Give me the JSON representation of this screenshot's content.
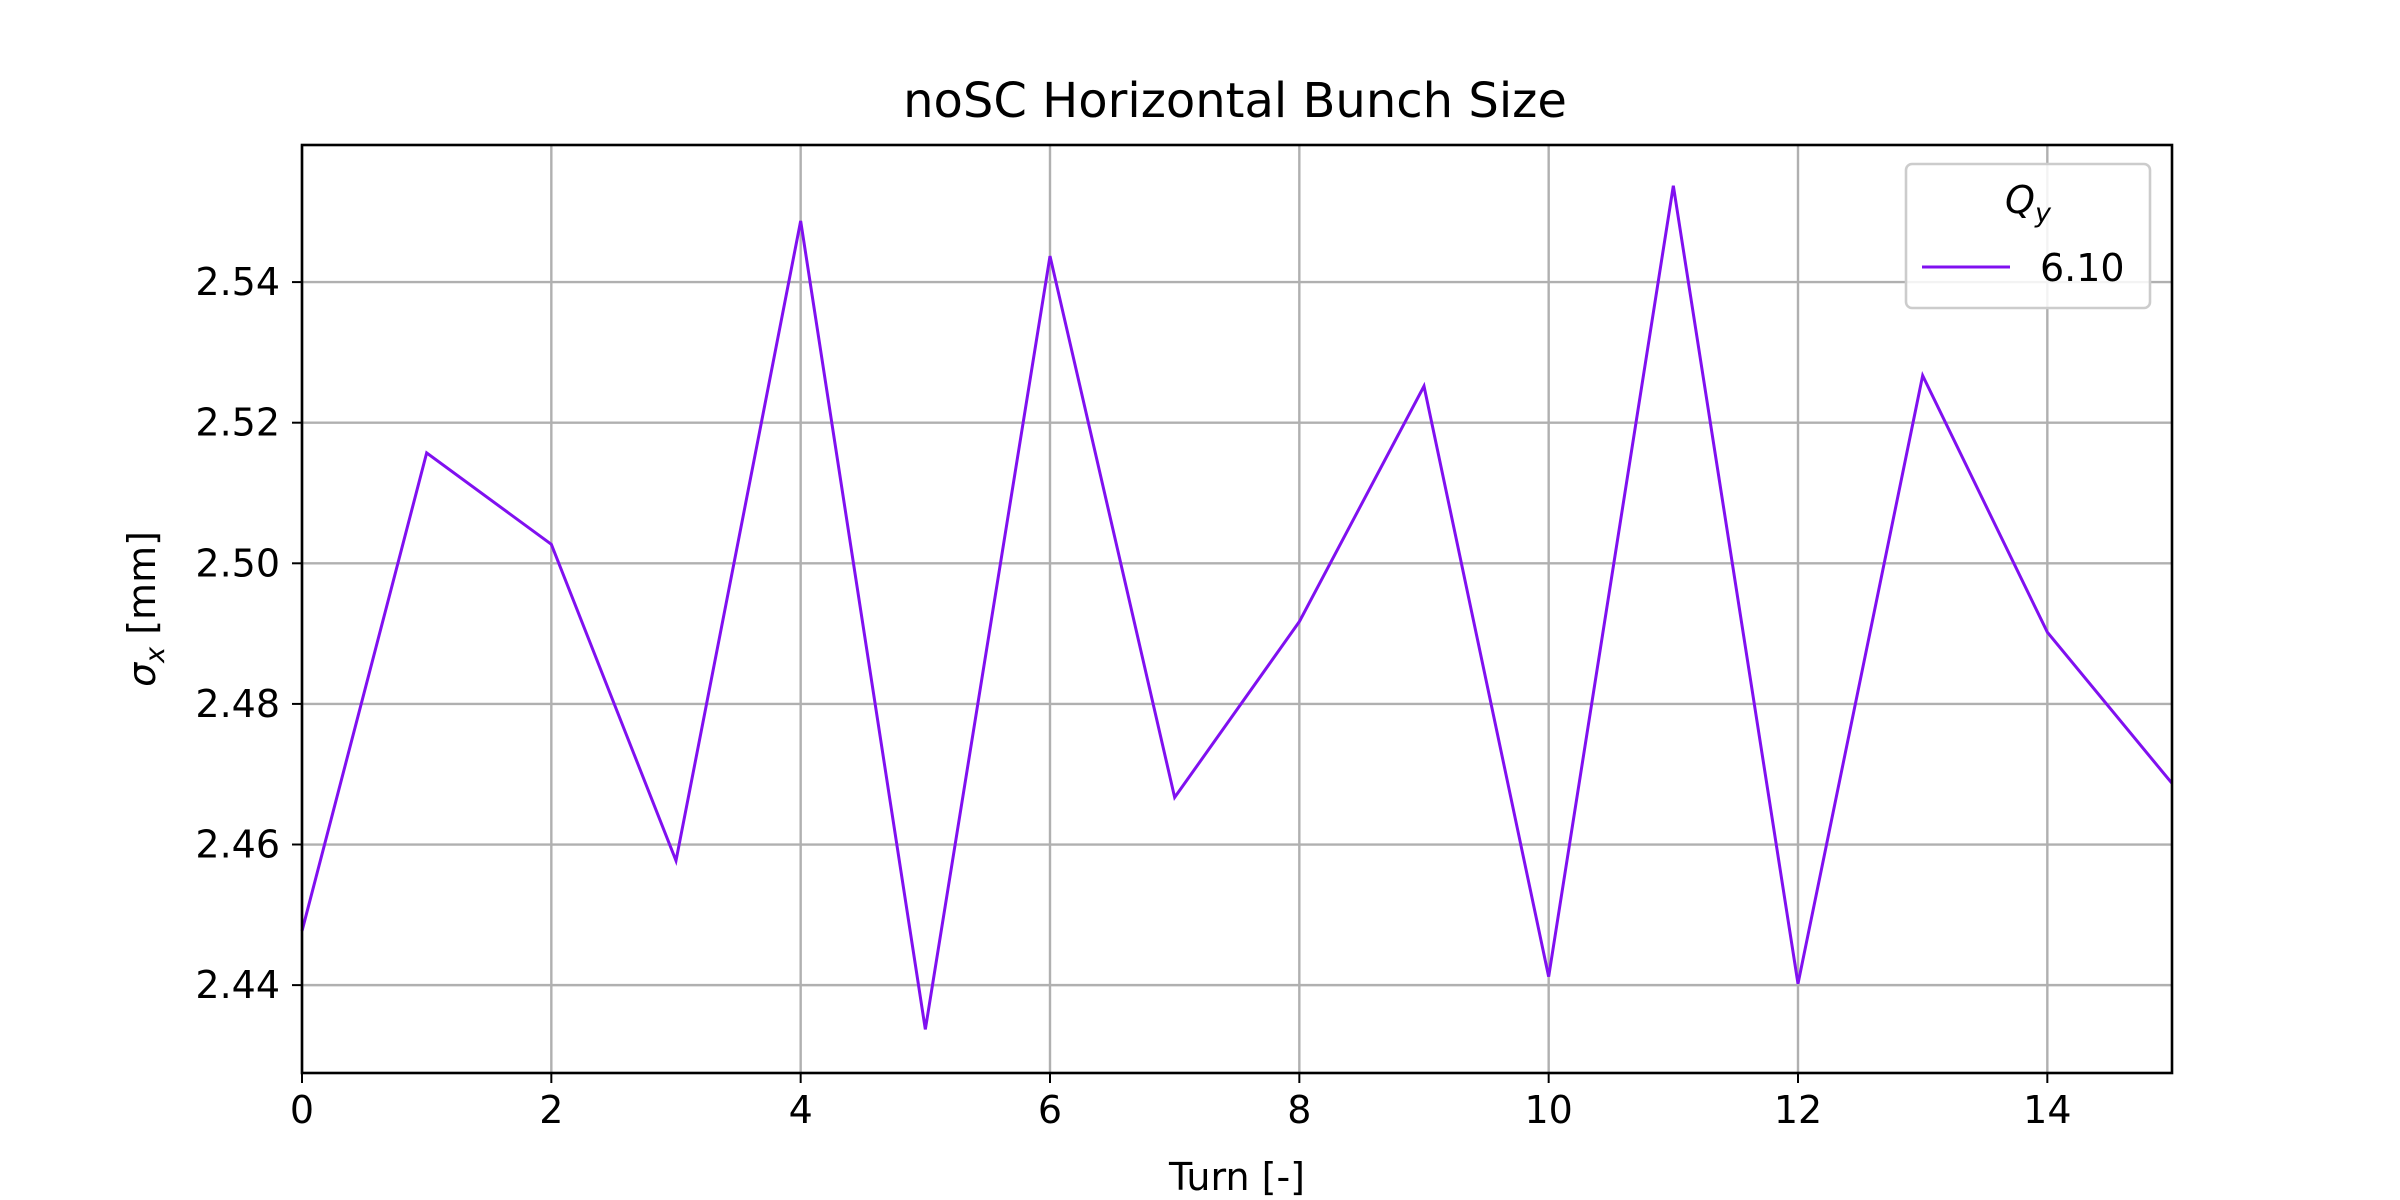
{
  "chart_data": {
    "type": "line",
    "title": "noSC Horizontal Bunch Size",
    "xlabel": "Turn [-]",
    "ylabel": "σx [mm]",
    "xlim": [
      0,
      15
    ],
    "ylim": [
      2.4275,
      2.5595
    ],
    "xticks": [
      0,
      2,
      4,
      6,
      8,
      10,
      12,
      14
    ],
    "yticks": [
      2.44,
      2.46,
      2.48,
      2.5,
      2.52,
      2.54
    ],
    "xtick_labels": [
      "0",
      "2",
      "4",
      "6",
      "8",
      "10",
      "12",
      "14"
    ],
    "ytick_labels": [
      "2.44",
      "2.46",
      "2.48",
      "2.50",
      "2.52",
      "2.54"
    ],
    "grid": true,
    "legend": {
      "title": "Qy",
      "placement": "top-right"
    },
    "series": [
      {
        "name": "6.10",
        "color": "#8010f0",
        "x": [
          0,
          1,
          2,
          3,
          4,
          5,
          6,
          7,
          8,
          9,
          10,
          11,
          12,
          13,
          14,
          15
        ],
        "y": [
          2.4477,
          2.5157,
          2.5027,
          2.4577,
          2.5487,
          2.4337,
          2.5437,
          2.4667,
          2.4917,
          2.5252,
          2.4412,
          2.5537,
          2.4402,
          2.5267,
          2.4902,
          2.4687
        ]
      }
    ]
  }
}
